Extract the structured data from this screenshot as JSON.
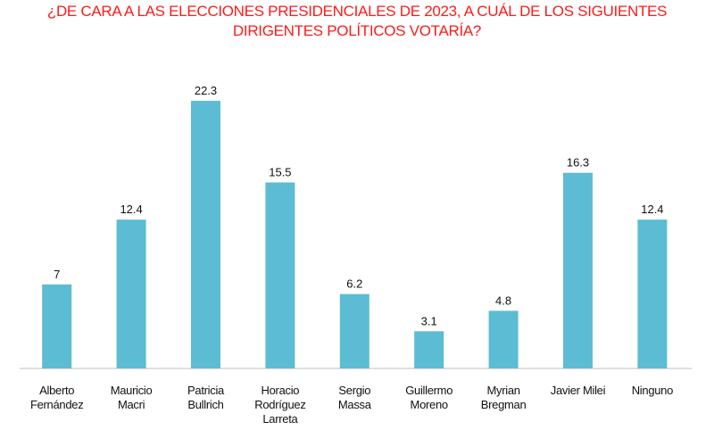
{
  "chart_data": {
    "type": "bar",
    "title_lines": [
      "¿DE CARA A LAS ELECCIONES PRESIDENCIALES DE 2023, A CUÁL DE LOS SIGUIENTES",
      "DIRIGENTES POLÍTICOS VOTARÍA?"
    ],
    "categories": [
      [
        "Alberto",
        "Fernández"
      ],
      [
        "Mauricio",
        "Macri"
      ],
      [
        "Patricia",
        "Bullrich"
      ],
      [
        "Horacio",
        "Rodríguez",
        "Larreta"
      ],
      [
        "Sergio",
        "Massa"
      ],
      [
        "Guillermo",
        "Moreno"
      ],
      [
        "Myrian",
        "Bregman"
      ],
      [
        "Javier Milei"
      ],
      [
        "Ninguno"
      ]
    ],
    "values": [
      7,
      12.4,
      22.3,
      15.5,
      6.2,
      3.1,
      4.8,
      16.3,
      12.4
    ],
    "value_labels": [
      "7",
      "12.4",
      "22.3",
      "15.5",
      "6.2",
      "3.1",
      "4.8",
      "16.3",
      "12.4"
    ],
    "ylim": [
      0,
      22.3
    ],
    "xlabel": "",
    "ylabel": "",
    "bar_color": "#5bbcd4",
    "title_color": "#ff1a1a"
  }
}
